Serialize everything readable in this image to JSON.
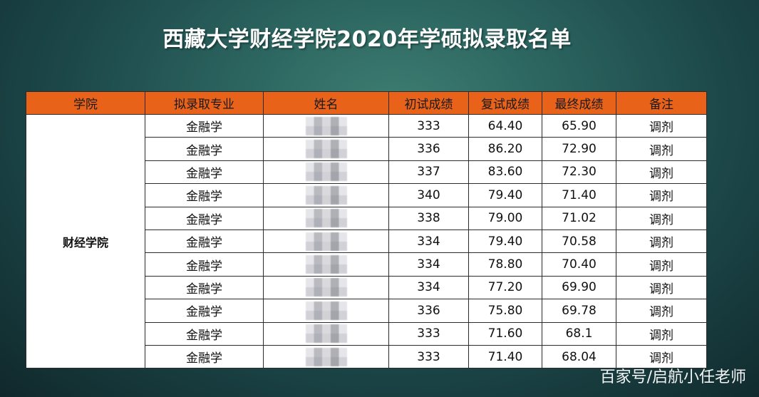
{
  "title": "西藏大学财经学院2020年学硕拟录取名单",
  "columns": [
    "学院",
    "拟录取专业",
    "姓名",
    "初试成绩",
    "复试成绩",
    "最终成绩",
    "备注"
  ],
  "school": "财经学院",
  "rows": [
    {
      "major": "金融学",
      "name": "",
      "initial": "333",
      "retest": "64.40",
      "final": "65.90",
      "note": "调剂"
    },
    {
      "major": "金融学",
      "name": "",
      "initial": "336",
      "retest": "86.20",
      "final": "72.90",
      "note": "调剂"
    },
    {
      "major": "金融学",
      "name": "",
      "initial": "337",
      "retest": "83.60",
      "final": "72.30",
      "note": "调剂"
    },
    {
      "major": "金融学",
      "name": "",
      "initial": "340",
      "retest": "79.40",
      "final": "71.40",
      "note": "调剂"
    },
    {
      "major": "金融学",
      "name": "",
      "initial": "338",
      "retest": "79.00",
      "final": "71.02",
      "note": "调剂"
    },
    {
      "major": "金融学",
      "name": "",
      "initial": "334",
      "retest": "79.40",
      "final": "70.58",
      "note": "调剂"
    },
    {
      "major": "金融学",
      "name": "",
      "initial": "334",
      "retest": "78.80",
      "final": "70.40",
      "note": "调剂"
    },
    {
      "major": "金融学",
      "name": "",
      "initial": "334",
      "retest": "77.20",
      "final": "69.90",
      "note": "调剂"
    },
    {
      "major": "金融学",
      "name": "",
      "initial": "336",
      "retest": "75.80",
      "final": "69.78",
      "note": "调剂"
    },
    {
      "major": "金融学",
      "name": "",
      "initial": "333",
      "retest": "71.60",
      "final": "68.1",
      "note": "调剂"
    },
    {
      "major": "金融学",
      "name": "",
      "initial": "333",
      "retest": "71.40",
      "final": "68.04",
      "note": "调剂"
    }
  ],
  "watermark": "百家号/启航小任老师",
  "colors": {
    "header_bg": "#e8621a",
    "background": "#2c6560",
    "title_text": "#ffffff"
  }
}
